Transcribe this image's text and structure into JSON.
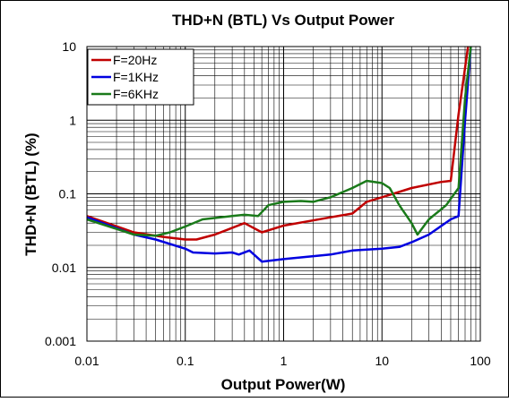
{
  "chart_data": {
    "type": "line",
    "title": "THD+N (BTL) Vs Output Power",
    "xlabel": "Output Power(W)",
    "ylabel": "THD+N (BTL) (%)",
    "xscale": "log",
    "yscale": "log",
    "xlim": [
      0.01,
      100
    ],
    "ylim": [
      0.001,
      10
    ],
    "xticks": [
      0.01,
      0.1,
      1,
      10,
      100
    ],
    "yticks": [
      0.001,
      0.01,
      0.1,
      1,
      10
    ],
    "grid": true,
    "legend": "upper left",
    "series": [
      {
        "name": "F=20Hz",
        "color": "#c00000",
        "x": [
          0.01,
          0.03,
          0.06,
          0.1,
          0.13,
          0.2,
          0.4,
          0.6,
          1,
          3,
          5,
          7,
          10,
          20,
          40,
          50,
          60,
          75
        ],
        "values": [
          0.05,
          0.03,
          0.026,
          0.024,
          0.024,
          0.028,
          0.04,
          0.03,
          0.037,
          0.048,
          0.054,
          0.078,
          0.09,
          0.12,
          0.145,
          0.15,
          1.2,
          10
        ]
      },
      {
        "name": "F=1KHz",
        "color": "#0000e0",
        "x": [
          0.01,
          0.03,
          0.05,
          0.1,
          0.12,
          0.2,
          0.3,
          0.35,
          0.45,
          0.6,
          1,
          3,
          5,
          10,
          15,
          20,
          30,
          50,
          60,
          70,
          80
        ],
        "values": [
          0.048,
          0.028,
          0.024,
          0.018,
          0.016,
          0.0155,
          0.016,
          0.015,
          0.017,
          0.012,
          0.013,
          0.015,
          0.017,
          0.018,
          0.019,
          0.022,
          0.028,
          0.045,
          0.05,
          1,
          10
        ]
      },
      {
        "name": "F=6KHz",
        "color": "#1a7a1a",
        "x": [
          0.01,
          0.03,
          0.05,
          0.07,
          0.1,
          0.15,
          0.3,
          0.4,
          0.55,
          0.7,
          1,
          1.5,
          2,
          3,
          5,
          7,
          10,
          12,
          15,
          20,
          23,
          30,
          45,
          60,
          70,
          80
        ],
        "values": [
          0.045,
          0.028,
          0.027,
          0.03,
          0.036,
          0.045,
          0.05,
          0.052,
          0.05,
          0.07,
          0.078,
          0.08,
          0.078,
          0.09,
          0.12,
          0.15,
          0.14,
          0.12,
          0.07,
          0.04,
          0.028,
          0.045,
          0.07,
          0.12,
          2,
          10
        ]
      }
    ]
  }
}
